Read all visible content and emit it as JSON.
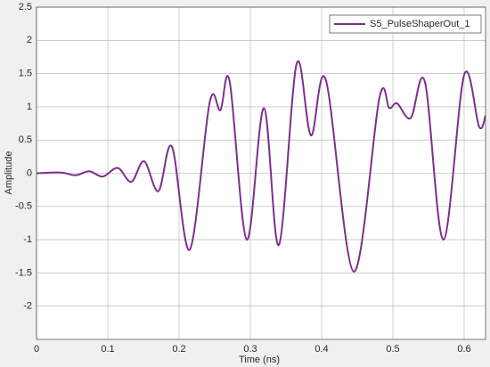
{
  "chart_data": {
    "type": "line",
    "xlabel": "Time (ns)",
    "ylabel": "Amplitude",
    "x": [
      0,
      0.034,
      0.055,
      0.074,
      0.093,
      0.114,
      0.133,
      0.151,
      0.171,
      0.19,
      0.215,
      0.243,
      0.258,
      0.271,
      0.295,
      0.319,
      0.34,
      0.365,
      0.385,
      0.406,
      0.445,
      0.481,
      0.495,
      0.506,
      0.525,
      0.545,
      0.571,
      0.6,
      0.621,
      0.63
    ],
    "series": [
      {
        "name": "S5_PulseShaperOut_1",
        "color": "#7e2f8e",
        "values": [
          0,
          0.01,
          -0.03,
          0.03,
          -0.05,
          0.08,
          -0.13,
          0.18,
          -0.27,
          0.4,
          -1.15,
          1.07,
          0.95,
          1.38,
          -1.0,
          0.98,
          -1.08,
          1.65,
          0.57,
          1.4,
          -1.48,
          1.13,
          0.98,
          1.05,
          0.83,
          1.37,
          -1.0,
          1.48,
          0.7,
          0.87
        ]
      }
    ],
    "xlim": [
      0,
      0.63
    ],
    "xticks": [
      0,
      0.1,
      0.2,
      0.3,
      0.4,
      0.5,
      0.6
    ],
    "ylim": [
      -2.5,
      2.5
    ],
    "yticks": [
      -2,
      -1.5,
      -1,
      -0.5,
      0,
      0.5,
      1,
      1.5,
      2,
      2.5
    ],
    "grid": true,
    "legend": "northeast"
  }
}
